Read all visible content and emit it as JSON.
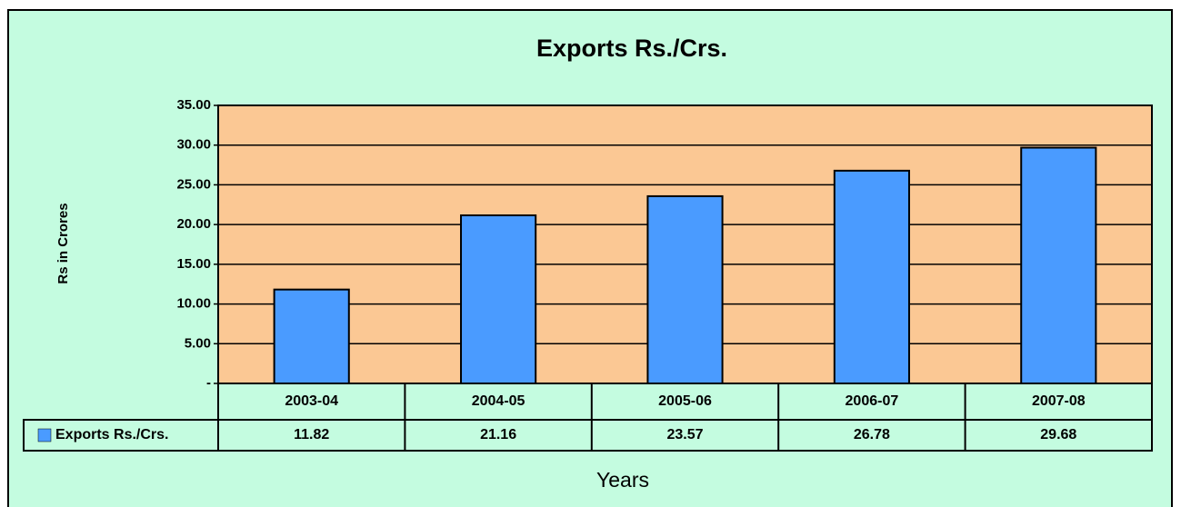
{
  "chart_data": {
    "type": "bar",
    "title": "Exports Rs./Crs.",
    "y_label": "Rs in Crores",
    "x_label": "Years",
    "categories": [
      "2003-04",
      "2004-05",
      "2005-06",
      "2006-07",
      "2007-08"
    ],
    "series": [
      {
        "name": "Exports Rs./Crs.",
        "color": "#4a9bff",
        "values": [
          11.82,
          21.16,
          23.57,
          26.78,
          29.68
        ]
      }
    ],
    "ylim": [
      0,
      35
    ],
    "yticks": [
      {
        "value": 0,
        "label": "-"
      },
      {
        "value": 5,
        "label": "5.00"
      },
      {
        "value": 10,
        "label": "10.00"
      },
      {
        "value": 15,
        "label": "15.00"
      },
      {
        "value": 20,
        "label": "20.00"
      },
      {
        "value": 25,
        "label": "25.00"
      },
      {
        "value": 30,
        "label": "30.00"
      },
      {
        "value": 35,
        "label": "35.00"
      }
    ],
    "grid": true,
    "data_table": true
  }
}
